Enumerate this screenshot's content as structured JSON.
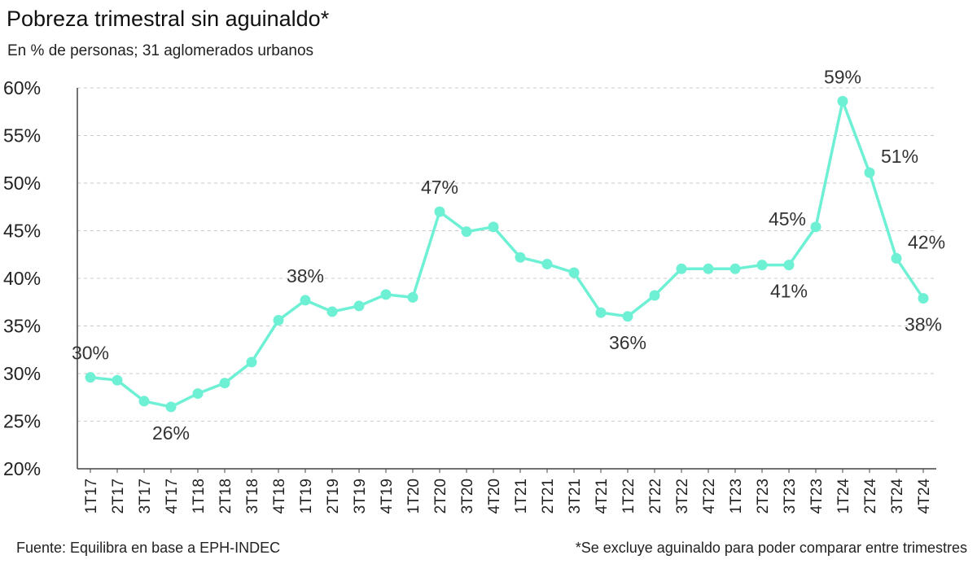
{
  "header": {
    "title": "Pobreza trimestral sin aguinaldo*",
    "subtitle": "En % de personas; 31 aglomerados urbanos"
  },
  "footer": {
    "source": "Fuente: Equilibra en base a EPH-INDEC",
    "note": "*Se excluye aguinaldo para poder comparar entre trimestres"
  },
  "chart_data": {
    "type": "line",
    "title": "Pobreza trimestral sin aguinaldo*",
    "subtitle": "En % de personas; 31 aglomerados urbanos",
    "categories": [
      "1T17",
      "2T17",
      "3T17",
      "4T17",
      "1T18",
      "2T18",
      "3T18",
      "4T18",
      "1T19",
      "2T19",
      "3T19",
      "4T19",
      "1T20",
      "2T20",
      "3T20",
      "4T20",
      "1T21",
      "2T21",
      "3T21",
      "4T21",
      "1T22",
      "2T22",
      "3T22",
      "4T22",
      "1T23",
      "2T23",
      "3T23",
      "4T23",
      "1T24",
      "2T24",
      "3T24",
      "4T24"
    ],
    "series": [
      {
        "values": [
          29.6,
          29.3,
          27.1,
          26.5,
          27.9,
          29.0,
          31.2,
          35.6,
          37.7,
          36.5,
          37.1,
          38.3,
          38.0,
          47.0,
          44.9,
          45.4,
          42.2,
          41.5,
          40.6,
          36.4,
          36.0,
          38.2,
          41.0,
          41.0,
          41.0,
          41.4,
          41.4,
          45.4,
          58.6,
          51.1,
          42.1,
          37.9
        ],
        "color": "#6ef0d4"
      }
    ],
    "ylim": [
      20,
      60
    ],
    "yticks": [
      20,
      25,
      30,
      35,
      40,
      45,
      50,
      55,
      60
    ],
    "ytick_labels": [
      "20%",
      "25%",
      "30%",
      "35%",
      "40%",
      "45%",
      "50%",
      "55%",
      "60%"
    ],
    "grid": "horizontal dashed",
    "annotations": [
      {
        "index": 0,
        "text": "30%",
        "pos": "above"
      },
      {
        "index": 3,
        "text": "26%",
        "pos": "below"
      },
      {
        "index": 8,
        "text": "38%",
        "pos": "above"
      },
      {
        "index": 13,
        "text": "47%",
        "pos": "above"
      },
      {
        "index": 20,
        "text": "36%",
        "pos": "below"
      },
      {
        "index": 26,
        "text": "41%",
        "pos": "below"
      },
      {
        "index": 27,
        "text": "45%",
        "pos": "left"
      },
      {
        "index": 28,
        "text": "59%",
        "pos": "above"
      },
      {
        "index": 29,
        "text": "51%",
        "pos": "right"
      },
      {
        "index": 30,
        "text": "42%",
        "pos": "right"
      },
      {
        "index": 31,
        "text": "38%",
        "pos": "below"
      }
    ]
  }
}
